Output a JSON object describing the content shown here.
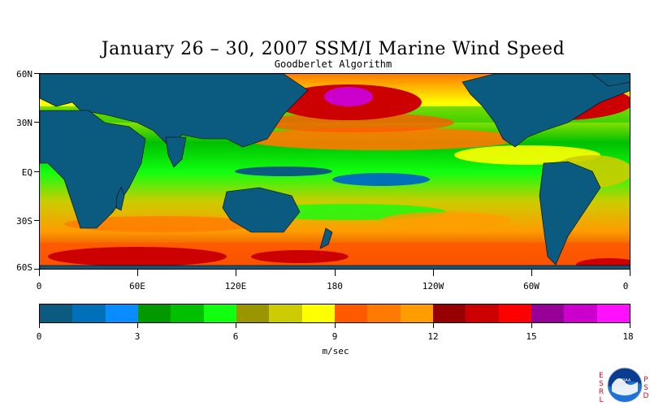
{
  "title": "January 26 – 30, 2007 SSM/I Marine Wind Speed",
  "subtitle": "Goodberlet Algorithm",
  "lat_labels": [
    "60N",
    "30N",
    "EQ",
    "30S",
    "60S"
  ],
  "lon_labels": [
    "0",
    "60E",
    "120E",
    "180",
    "120W",
    "60W",
    "0"
  ],
  "colorbar": {
    "colors": [
      "#0b5a80",
      "#0070b8",
      "#0a8cff",
      "#009a00",
      "#00c000",
      "#10ff10",
      "#9a9600",
      "#cccc00",
      "#ffff00",
      "#ff5a00",
      "#ff7a00",
      "#ff9c00",
      "#960000",
      "#cc0000",
      "#ff0000",
      "#960096",
      "#cc00cc",
      "#ff10ff"
    ],
    "tick_labels": [
      "0",
      "3",
      "6",
      "9",
      "12",
      "15",
      "18"
    ],
    "units": "m/sec"
  },
  "logo": {
    "left_text": [
      "E",
      "S",
      "R",
      "L"
    ],
    "right_text": [
      "P",
      "S",
      "D"
    ],
    "name": "noaa-logo",
    "center_text": "NOAA"
  }
}
